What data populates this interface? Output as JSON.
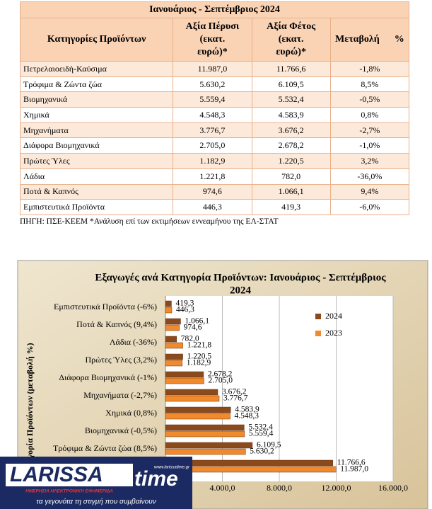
{
  "table": {
    "title": "Ιανουάριος - Σεπτέμβριος  2024",
    "header": [
      [
        "Κατηγορίες Προϊόντων"
      ],
      [
        "Αξία Πέρυσι",
        "(εκατ.",
        "ευρώ)*"
      ],
      [
        "Αξία Φέτος",
        "(εκατ.",
        "ευρώ)*"
      ],
      [
        "Μεταβολή      %"
      ]
    ],
    "rows": [
      [
        "Πετρελαιοειδή-Καύσιμα",
        "11.987,0",
        "11.766,6",
        "-1,8%"
      ],
      [
        "Τρόφιμα & Ζώντα ζώα",
        "5.630,2",
        "6.109,5",
        "8,5%"
      ],
      [
        "Βιομηχανικά",
        "5.559,4",
        "5.532,4",
        "-0,5%"
      ],
      [
        "Χημικά",
        "4.548,3",
        "4.583,9",
        "0,8%"
      ],
      [
        "Μηχανήματα",
        "3.776,7",
        "3.676,2",
        "-2,7%"
      ],
      [
        "Διάφορα Βιομηχανικά",
        "2.705,0",
        "2.678,2",
        "-1,0%"
      ],
      [
        "Πρώτες Ύλες",
        "1.182,9",
        "1.220,5",
        "3,2%"
      ],
      [
        "Λάδια",
        "1.221,8",
        "782,0",
        "-36,0%"
      ],
      [
        "Ποτά & Καπνός",
        "974,6",
        "1.066,1",
        "9,4%"
      ],
      [
        "Εμπιστευτικά Προϊόντα",
        "446,3",
        "419,3",
        "-6,0%"
      ]
    ],
    "source": "ΠΗΓΗ: ΠΣΕ-ΚΕΕΜ *Ανάλυση επί των εκτιμήσεων εννεαμήνου της ΕΛ-ΣΤΑΤ"
  },
  "chart_data": {
    "type": "hbar",
    "title": [
      "Εξαγωγές ανά Κατηγορία Προϊόντων:  Ιανουάριος - Σεπτέμβριος",
      "2024"
    ],
    "y_label": "Κατηγορία Προϊόντων (μεταβολή %)",
    "categories": [
      null,
      "Τρόφιμα & Ζώντα ζώα (8,5%)",
      "Βιομηχανικά (-0,5%)",
      "Χημικά (0,8%)",
      "Μηχανήματα (-2,7%)",
      "Διάφορα Βιομηχανικά (-1%)",
      "Πρώτες Ύλες (3,2%)",
      "Λάδια (-36%)",
      "Ποτά & Καπνός (9,4%)",
      "Εμπιστευτικά Προϊόντα (-6%)"
    ],
    "series": [
      {
        "name": "2024",
        "color": "#8a4a1c",
        "values": [
          11766.6,
          6109.5,
          5532.4,
          4583.9,
          3676.2,
          2678.2,
          1220.5,
          782.0,
          1066.1,
          419.3
        ],
        "value_labels": [
          "11.766,6",
          "6.109,5",
          "5.532,4",
          "4.583,9",
          "3.676,2",
          "2.678,2",
          "1.220,5",
          "782,0",
          "1.066,1",
          "419,3"
        ]
      },
      {
        "name": "2023",
        "color": "#f08a2c",
        "values": [
          11987.0,
          5630.2,
          5559.4,
          4548.3,
          3776.7,
          2705.0,
          1182.9,
          1221.8,
          974.6,
          446.3
        ],
        "value_labels": [
          "11.987,0",
          "5.630,2",
          "5.559,4",
          "4.548,3",
          "3.776,7",
          "2.705,0",
          "1.182,9",
          "1.221,8",
          "974,6",
          "446,3"
        ]
      }
    ],
    "xlim": [
      0,
      16000
    ],
    "xticks": [
      {
        "value": 4000,
        "label": "4.000,0"
      },
      {
        "value": 8000,
        "label": "8.000,0"
      },
      {
        "value": 12000,
        "label": "12.000,0"
      },
      {
        "value": 16000,
        "label": "16.000,0"
      }
    ],
    "grid": true,
    "legend": "top-right"
  },
  "logo": {
    "name": "LARISSA",
    "name2": "time",
    "url": "www.larissatime.gr",
    "subtitle": "ΗΜΕΡΗΣΙΑ ΗΛΕΚΤΡΟΝΙΚΗ ΕΦΗΜΕΡΙΔΑ",
    "slogan": "τα γεγονότα τη στιγμή που συμβαίνουν"
  }
}
